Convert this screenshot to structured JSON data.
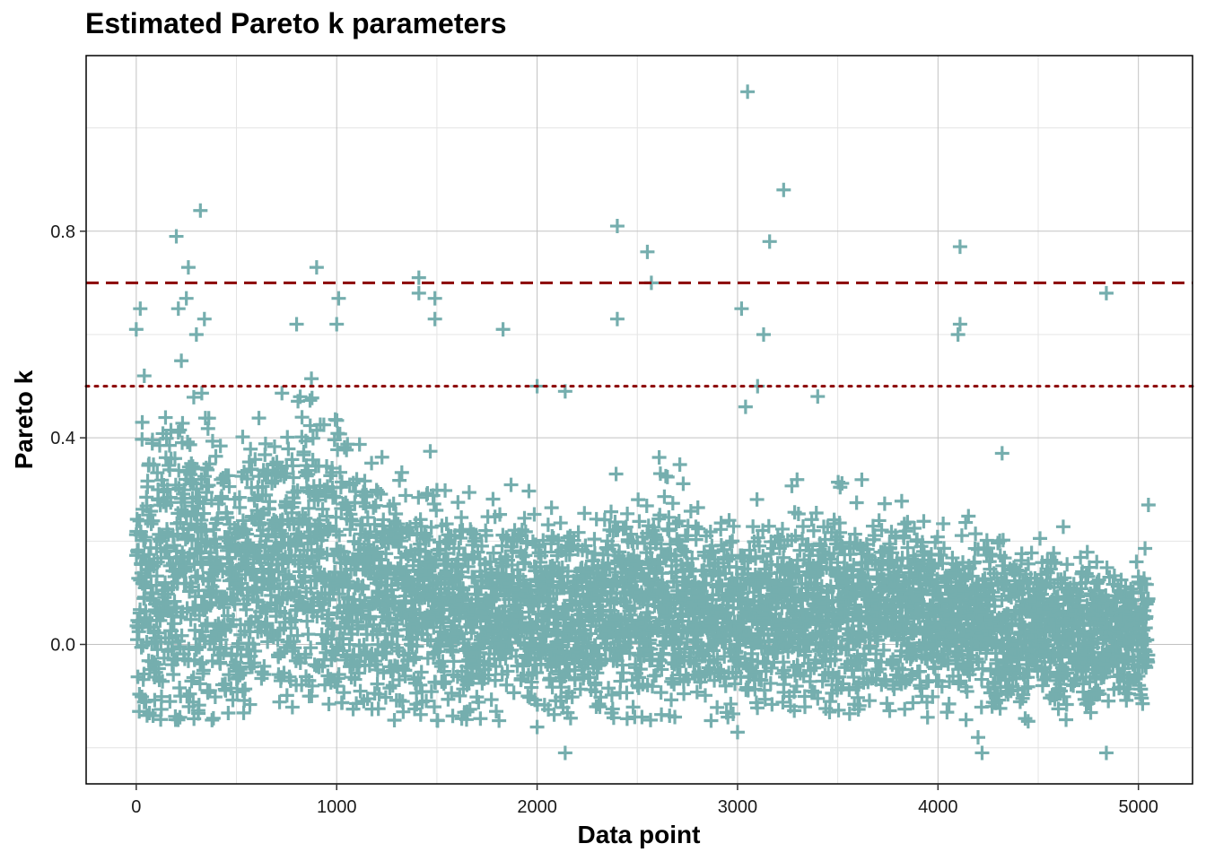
{
  "chart_data": {
    "type": "scatter",
    "title": "Estimated Pareto k parameters",
    "xlabel": "Data point",
    "ylabel": "Pareto k",
    "xlim": [
      -250,
      5270
    ],
    "ylim": [
      -0.27,
      1.14
    ],
    "x_ticks": [
      0,
      1000,
      2000,
      3000,
      4000,
      5000
    ],
    "x_tick_labels": [
      "0",
      "1000",
      "2000",
      "3000",
      "4000",
      "5000"
    ],
    "y_ticks": [
      0.0,
      0.4,
      0.8
    ],
    "y_tick_labels": [
      "0.0",
      "0.4",
      "0.8"
    ],
    "grid": true,
    "n_points": 5050,
    "marker": "plus",
    "point_color": "#75AEAE",
    "reference_lines": [
      {
        "y": 0.7,
        "style": "dashed",
        "color": "#8B0000"
      },
      {
        "y": 0.5,
        "style": "dotted",
        "color": "#8B0000"
      }
    ],
    "highlighted_points": [
      {
        "x": 0,
        "y": 0.61
      },
      {
        "x": 20,
        "y": 0.65
      },
      {
        "x": 30,
        "y": 0.43
      },
      {
        "x": 40,
        "y": 0.52
      },
      {
        "x": 200,
        "y": 0.79
      },
      {
        "x": 210,
        "y": 0.65
      },
      {
        "x": 250,
        "y": 0.67
      },
      {
        "x": 260,
        "y": 0.73
      },
      {
        "x": 320,
        "y": 0.84
      },
      {
        "x": 340,
        "y": 0.63
      },
      {
        "x": 300,
        "y": 0.6
      },
      {
        "x": 900,
        "y": 0.73
      },
      {
        "x": 800,
        "y": 0.62
      },
      {
        "x": 1010,
        "y": 0.67
      },
      {
        "x": 1000,
        "y": 0.62
      },
      {
        "x": 1410,
        "y": 0.71
      },
      {
        "x": 1410,
        "y": 0.68
      },
      {
        "x": 1490,
        "y": 0.67
      },
      {
        "x": 1490,
        "y": 0.63
      },
      {
        "x": 1830,
        "y": 0.61
      },
      {
        "x": 2000,
        "y": 0.5
      },
      {
        "x": 2140,
        "y": 0.49
      },
      {
        "x": 2400,
        "y": 0.81
      },
      {
        "x": 2400,
        "y": 0.63
      },
      {
        "x": 2550,
        "y": 0.76
      },
      {
        "x": 2570,
        "y": 0.7
      },
      {
        "x": 3050,
        "y": 1.07
      },
      {
        "x": 3020,
        "y": 0.65
      },
      {
        "x": 3130,
        "y": 0.6
      },
      {
        "x": 3230,
        "y": 0.88
      },
      {
        "x": 3160,
        "y": 0.78
      },
      {
        "x": 3100,
        "y": 0.5
      },
      {
        "x": 3040,
        "y": 0.46
      },
      {
        "x": 4110,
        "y": 0.77
      },
      {
        "x": 4110,
        "y": 0.62
      },
      {
        "x": 4100,
        "y": 0.6
      },
      {
        "x": 4840,
        "y": 0.68
      },
      {
        "x": 2140,
        "y": -0.21
      },
      {
        "x": 4220,
        "y": -0.21
      },
      {
        "x": 4840,
        "y": -0.21
      },
      {
        "x": 3000,
        "y": -0.17
      },
      {
        "x": 4200,
        "y": -0.18
      },
      {
        "x": 2000,
        "y": -0.16
      },
      {
        "x": 5050,
        "y": 0.27
      },
      {
        "x": 4320,
        "y": 0.37
      },
      {
        "x": 3400,
        "y": 0.48
      }
    ],
    "bulk_trend": [
      {
        "x": 0,
        "mean": 0.08,
        "sd": 0.13
      },
      {
        "x": 250,
        "mean": 0.17,
        "sd": 0.16
      },
      {
        "x": 500,
        "mean": 0.1,
        "sd": 0.12
      },
      {
        "x": 850,
        "mean": 0.18,
        "sd": 0.14
      },
      {
        "x": 1200,
        "mean": 0.1,
        "sd": 0.11
      },
      {
        "x": 1700,
        "mean": 0.07,
        "sd": 0.09
      },
      {
        "x": 2200,
        "mean": 0.05,
        "sd": 0.09
      },
      {
        "x": 2600,
        "mean": 0.09,
        "sd": 0.1
      },
      {
        "x": 3000,
        "mean": 0.05,
        "sd": 0.08
      },
      {
        "x": 3600,
        "mean": 0.08,
        "sd": 0.09
      },
      {
        "x": 4100,
        "mean": 0.06,
        "sd": 0.08
      },
      {
        "x": 4600,
        "mean": 0.02,
        "sd": 0.07
      },
      {
        "x": 5050,
        "mean": 0.02,
        "sd": 0.06
      }
    ]
  }
}
